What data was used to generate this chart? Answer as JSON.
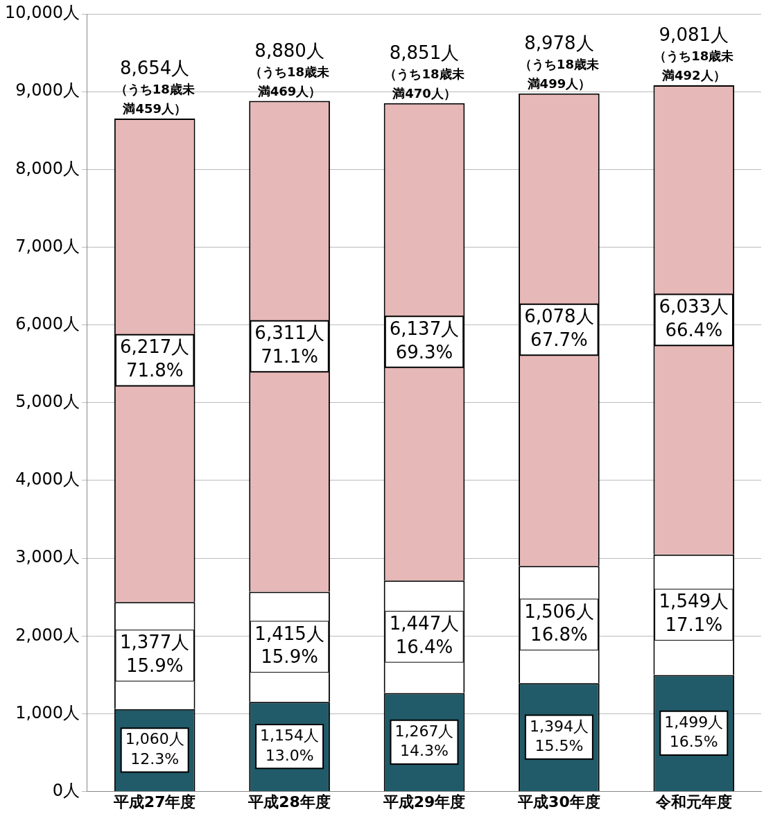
{
  "chart_data": {
    "type": "bar",
    "stacked": true,
    "categories": [
      "平成27年度",
      "平成28年度",
      "平成29年度",
      "平成30年度",
      "令和元年度"
    ],
    "series": [
      {
        "color": "#215a68",
        "values": [
          1060,
          1154,
          1267,
          1394,
          1499
        ],
        "value_labels": [
          "1,060人\n12.3%",
          "1,154人\n13.0%",
          "1,267人\n14.3%",
          "1,394人\n15.5%",
          "1,499人\n16.5%"
        ]
      },
      {
        "color": "#ffffff",
        "values": [
          1377,
          1415,
          1447,
          1506,
          1549
        ],
        "value_labels": [
          "1,377人\n15.9%",
          "1,415人\n15.9%",
          "1,447人\n16.4%",
          "1,506人\n16.8%",
          "1,549人\n17.1%"
        ]
      },
      {
        "color": "#e6b8b7",
        "values": [
          6217,
          6311,
          6137,
          6078,
          6033
        ],
        "value_labels": [
          "6,217人\n71.8%",
          "6,311人\n71.1%",
          "6,137人\n69.3%",
          "6,078人\n67.7%",
          "6,033人\n66.4%"
        ]
      }
    ],
    "totals": [
      "8,654人",
      "8,880人",
      "8,851人",
      "8,978人",
      "9,081人"
    ],
    "annotations": [
      {
        "text": "（うち18歳未満459人）",
        "x": "平成27年度",
        "y": 8654
      },
      {
        "text": "（うち18歳未満469人）",
        "x": "平成28年度",
        "y": 8880
      },
      {
        "text": "（うち18歳未満470人）",
        "x": "平成29年度",
        "y": 8851
      },
      {
        "text": "（うち18歳未満499人）",
        "x": "平成30年度",
        "y": 8978
      },
      {
        "text": "（うち18歳未満492人）",
        "x": "令和元年度",
        "y": 9081
      }
    ],
    "ylim": [
      0,
      10000
    ],
    "yticks": [
      {
        "value": 0,
        "label": "0人"
      },
      {
        "value": 1000,
        "label": "1,000人"
      },
      {
        "value": 2000,
        "label": "2,000人"
      },
      {
        "value": 3000,
        "label": "3,000人"
      },
      {
        "value": 4000,
        "label": "4,000人"
      },
      {
        "value": 5000,
        "label": "5,000人"
      },
      {
        "value": 6000,
        "label": "6,000人"
      },
      {
        "value": 7000,
        "label": "7,000人"
      },
      {
        "value": 8000,
        "label": "8,000人"
      },
      {
        "value": 9000,
        "label": "9,000人"
      },
      {
        "value": 10000,
        "label": "10,000人"
      }
    ],
    "grid": "y",
    "legend": false
  }
}
